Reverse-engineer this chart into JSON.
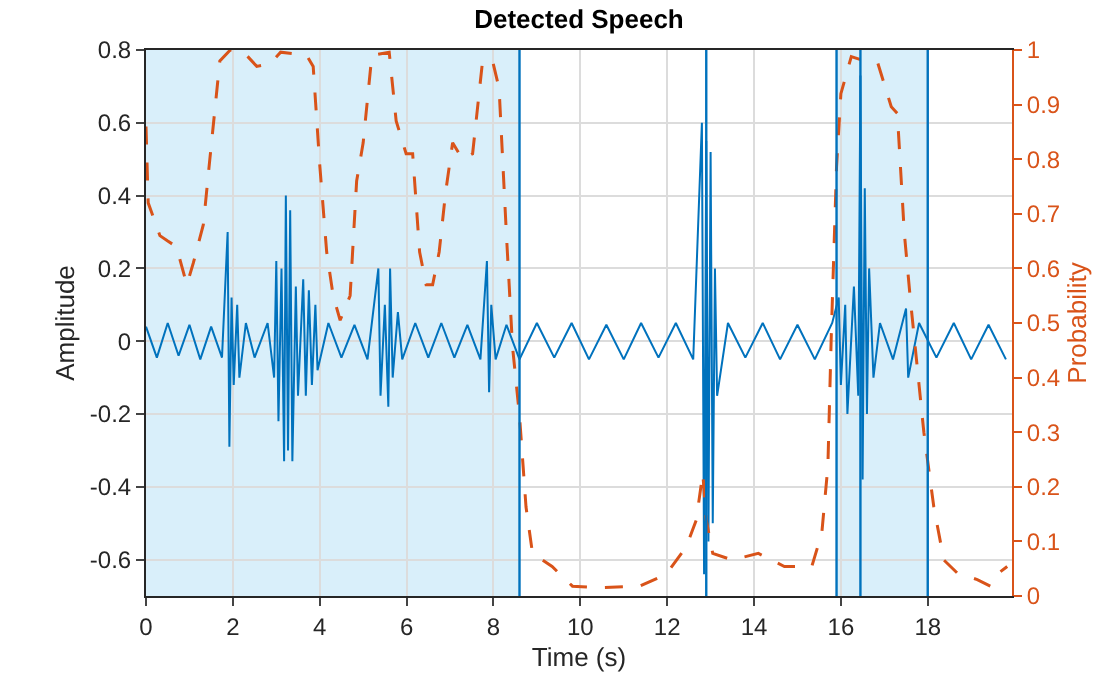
{
  "chart_data": {
    "type": "line",
    "title": "Detected Speech",
    "xlabel": "Time (s)",
    "ylabel": "Amplitude",
    "y2label": "Probability",
    "xlim": [
      0,
      19.94
    ],
    "xticks": [
      0,
      2,
      4,
      6,
      8,
      10,
      12,
      14,
      16,
      18
    ],
    "ylim": [
      -0.7,
      0.8
    ],
    "yticks": [
      -0.6,
      -0.4,
      -0.2,
      0,
      0.2,
      0.4,
      0.6,
      0.8
    ],
    "y2lim": [
      0,
      1
    ],
    "y2ticks": [
      0,
      0.1,
      0.2,
      0.3,
      0.4,
      0.5,
      0.6,
      0.7,
      0.8,
      0.9,
      1
    ],
    "grid": true,
    "bands": [
      {
        "axis": "x",
        "from": 0,
        "to": 8.6,
        "color": "#d9effa"
      },
      {
        "axis": "x",
        "from": 15.9,
        "to": 18.0,
        "color": "#d9effa"
      }
    ],
    "ref_lines": [
      {
        "axis": "x",
        "value": 8.6,
        "color": "#0072bd"
      },
      {
        "axis": "x",
        "value": 12.9,
        "color": "#0072bd"
      },
      {
        "axis": "x",
        "value": 15.9,
        "color": "#0072bd"
      },
      {
        "axis": "x",
        "value": 16.45,
        "color": "#0072bd"
      },
      {
        "axis": "x",
        "value": 18.0,
        "color": "#0072bd"
      }
    ],
    "series": [
      {
        "color": "#0072bd",
        "line_style": "solid",
        "x": [
          0,
          0.25,
          0.5,
          0.75,
          1.0,
          1.25,
          1.5,
          1.75,
          1.88,
          1.92,
          1.97,
          2.02,
          2.1,
          2.15,
          2.3,
          2.5,
          2.8,
          2.95,
          3.0,
          3.05,
          3.12,
          3.18,
          3.22,
          3.27,
          3.32,
          3.37,
          3.45,
          3.5,
          3.62,
          3.68,
          3.75,
          3.82,
          3.9,
          3.95,
          4.2,
          4.5,
          4.8,
          5.1,
          5.35,
          5.4,
          5.5,
          5.58,
          5.62,
          5.68,
          5.8,
          5.9,
          6.2,
          6.5,
          6.8,
          7.1,
          7.4,
          7.7,
          7.85,
          7.9,
          7.95,
          8.05,
          8.3,
          8.6,
          9,
          9.4,
          9.8,
          10.2,
          10.6,
          11,
          11.4,
          11.8,
          12.2,
          12.6,
          12.8,
          12.85,
          12.9,
          12.95,
          13.0,
          13.05,
          13.1,
          13.15,
          13.4,
          13.8,
          14.2,
          14.6,
          15,
          15.4,
          15.8,
          15.95,
          16.0,
          16.1,
          16.15,
          16.3,
          16.4,
          16.45,
          16.5,
          16.55,
          16.6,
          16.65,
          16.75,
          16.9,
          17.2,
          17.5,
          17.55,
          17.8,
          18.2,
          18.6,
          19,
          19.4,
          19.8
        ],
        "values": [
          0.04,
          -0.045,
          0.05,
          -0.04,
          0.045,
          -0.05,
          0.04,
          -0.045,
          0.3,
          -0.29,
          0.12,
          -0.12,
          0.1,
          -0.1,
          0.05,
          -0.045,
          0.05,
          -0.1,
          0.22,
          -0.22,
          0.2,
          -0.33,
          0.4,
          -0.3,
          0.36,
          -0.33,
          0.15,
          -0.15,
          0.17,
          -0.15,
          0.14,
          -0.12,
          0.1,
          -0.08,
          0.05,
          -0.045,
          0.045,
          -0.05,
          0.2,
          -0.15,
          0.1,
          -0.18,
          0.2,
          -0.1,
          0.08,
          -0.05,
          0.05,
          -0.045,
          0.05,
          -0.045,
          0.045,
          -0.05,
          0.22,
          -0.14,
          0.1,
          -0.05,
          0.045,
          -0.05,
          0.05,
          -0.045,
          0.05,
          -0.05,
          0.045,
          -0.05,
          0.05,
          -0.045,
          0.05,
          -0.05,
          0.6,
          -0.64,
          0.55,
          -0.55,
          0.52,
          -0.5,
          0.2,
          -0.15,
          0.05,
          -0.045,
          0.05,
          -0.05,
          0.045,
          -0.05,
          0.05,
          0.12,
          -0.12,
          0.1,
          -0.2,
          0.15,
          -0.15,
          0.73,
          -0.38,
          0.42,
          -0.2,
          0.2,
          -0.1,
          0.05,
          -0.05,
          0.09,
          -0.1,
          0.05,
          -0.045,
          0.05,
          -0.05,
          0.045,
          -0.05
        ]
      },
      {
        "color": "#d95319",
        "axis": "y2",
        "line_style": "dashed",
        "x": [
          0,
          0.05,
          0.32,
          0.5,
          0.7,
          0.94,
          1.09,
          1.32,
          1.47,
          1.7,
          1.94,
          2.25,
          2.55,
          2.86,
          3.1,
          3.7,
          3.85,
          4.0,
          4.16,
          4.31,
          4.47,
          4.7,
          4.85,
          5.0,
          5.2,
          5.6,
          5.76,
          5.99,
          6.14,
          6.3,
          6.45,
          6.6,
          6.75,
          6.9,
          7.06,
          7.29,
          7.52,
          7.75,
          7.98,
          8.13,
          8.3,
          8.44,
          8.6,
          8.75,
          8.9,
          9.35,
          9.82,
          10.45,
          11.37,
          11.98,
          12.44,
          12.67,
          12.82,
          12.9,
          13.05,
          13.5,
          14.1,
          14.7,
          15.33,
          15.56,
          15.7,
          15.78,
          15.9,
          16.0,
          16.24,
          16.54,
          16.85,
          17.16,
          17.3,
          17.46,
          17.6,
          17.91,
          18.14,
          18.37,
          18.68,
          19.14,
          19.44,
          19.6,
          19.83
        ],
        "values": [
          0.86,
          0.72,
          0.66,
          0.65,
          0.64,
          0.57,
          0.61,
          0.68,
          0.8,
          0.98,
          1.0,
          0.996,
          0.97,
          0.975,
          0.996,
          0.99,
          0.97,
          0.79,
          0.63,
          0.55,
          0.505,
          0.55,
          0.76,
          0.83,
          0.99,
          0.996,
          0.87,
          0.81,
          0.81,
          0.63,
          0.57,
          0.57,
          0.63,
          0.74,
          0.83,
          0.8,
          0.81,
          0.98,
          0.98,
          0.93,
          0.66,
          0.456,
          0.33,
          0.163,
          0.078,
          0.054,
          0.018,
          0.015,
          0.018,
          0.04,
          0.09,
          0.139,
          0.225,
          0.139,
          0.078,
          0.066,
          0.078,
          0.054,
          0.054,
          0.115,
          0.237,
          0.48,
          0.786,
          0.92,
          0.988,
          0.98,
          0.976,
          0.896,
          0.884,
          0.665,
          0.543,
          0.3,
          0.163,
          0.066,
          0.042,
          0.03,
          0.018,
          0.04,
          0.054
        ]
      }
    ]
  }
}
